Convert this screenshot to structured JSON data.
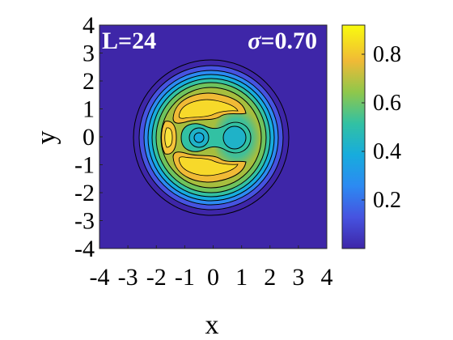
{
  "chart_data": {
    "type": "heatmap",
    "title": "",
    "xlabel": "x",
    "ylabel": "y",
    "xlim": [
      -4,
      4
    ],
    "ylim": [
      -4,
      4
    ],
    "xticks": [
      "-4",
      "-3",
      "-2",
      "-1",
      "0",
      "1",
      "2",
      "3",
      "4"
    ],
    "yticks": [
      "4",
      "3",
      "2",
      "1",
      "0",
      "-1",
      "-2",
      "-3",
      "-4"
    ],
    "annotations": {
      "left": "L=24",
      "right_symbol": "σ",
      "right_value": "=0.70"
    },
    "colorbar": {
      "range": [
        0,
        0.92
      ],
      "ticks": [
        0.2,
        0.4,
        0.6,
        0.8
      ],
      "tick_labels": [
        "0.2",
        "0.4",
        "0.6",
        "0.8"
      ],
      "colormap": "parula"
    },
    "density_model": {
      "boundary_radius": 2.35,
      "blobs": [
        {
          "label": "upper crescent",
          "x": 0.0,
          "y": 1.1,
          "amplitude": 0.88
        },
        {
          "label": "lower crescent",
          "x": 0.0,
          "y": -1.1,
          "amplitude": 0.88
        },
        {
          "label": "left band",
          "x": -1.3,
          "y": 0.0,
          "amplitude": 0.8
        },
        {
          "label": "right lobe",
          "x": 1.3,
          "y": 0.0,
          "amplitude": 0.55
        },
        {
          "label": "core left",
          "x": -0.3,
          "y": 0.0,
          "amplitude": 0.25
        },
        {
          "label": "core right",
          "x": 0.9,
          "y": 0.0,
          "amplitude": 0.35
        }
      ]
    }
  }
}
